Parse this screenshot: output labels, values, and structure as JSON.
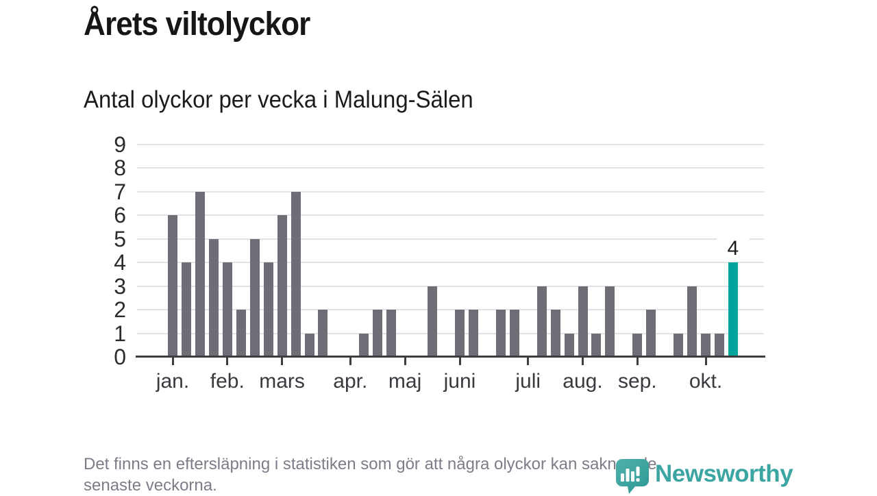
{
  "title": "Årets viltolyckor",
  "subtitle": "Antal olyckor per vecka i Malung-Sälen",
  "footnote": {
    "lines": [
      "Det finns en eftersläpning i statistiken som gör att några olyckor kan saknas de",
      "senaste veckorna."
    ]
  },
  "logo": {
    "text": "Newsworthy"
  },
  "colors": {
    "bar": "#6F6E77",
    "highlight": "#01A39D",
    "grid": "#E3E2E6",
    "axis": "#3E3D42",
    "logo_teal": "#3BA6A1",
    "footnote_text": "#7E7C88"
  },
  "chart_data": {
    "type": "bar",
    "title": "Årets viltolyckor",
    "subtitle": "Antal olyckor per vecka i Malung-Sälen",
    "x_unit": "vecka (weekly bars, jan–okt)",
    "ylabel": "",
    "xlabel": "",
    "ylim": [
      0,
      9
    ],
    "yticks": [
      0,
      1,
      2,
      3,
      4,
      5,
      6,
      7,
      8,
      9
    ],
    "grid": true,
    "legend": false,
    "values_by_week": [
      6,
      4,
      7,
      5,
      4,
      2,
      5,
      4,
      6,
      7,
      1,
      2,
      0,
      0,
      1,
      2,
      2,
      0,
      0,
      3,
      0,
      2,
      2,
      0,
      2,
      2,
      0,
      3,
      2,
      1,
      3,
      1,
      3,
      0,
      1,
      2,
      0,
      1,
      3,
      1,
      1,
      4
    ],
    "month_ticks": [
      {
        "label": "jan.",
        "week": 0
      },
      {
        "label": "feb.",
        "week": 4
      },
      {
        "label": "mars",
        "week": 8
      },
      {
        "label": "apr.",
        "week": 13
      },
      {
        "label": "maj",
        "week": 17
      },
      {
        "label": "juni",
        "week": 21
      },
      {
        "label": "juli",
        "week": 26
      },
      {
        "label": "aug.",
        "week": 30
      },
      {
        "label": "sep.",
        "week": 34
      },
      {
        "label": "okt.",
        "week": 39
      }
    ],
    "highlight": {
      "week": 41,
      "value": 4,
      "label": "4"
    }
  }
}
